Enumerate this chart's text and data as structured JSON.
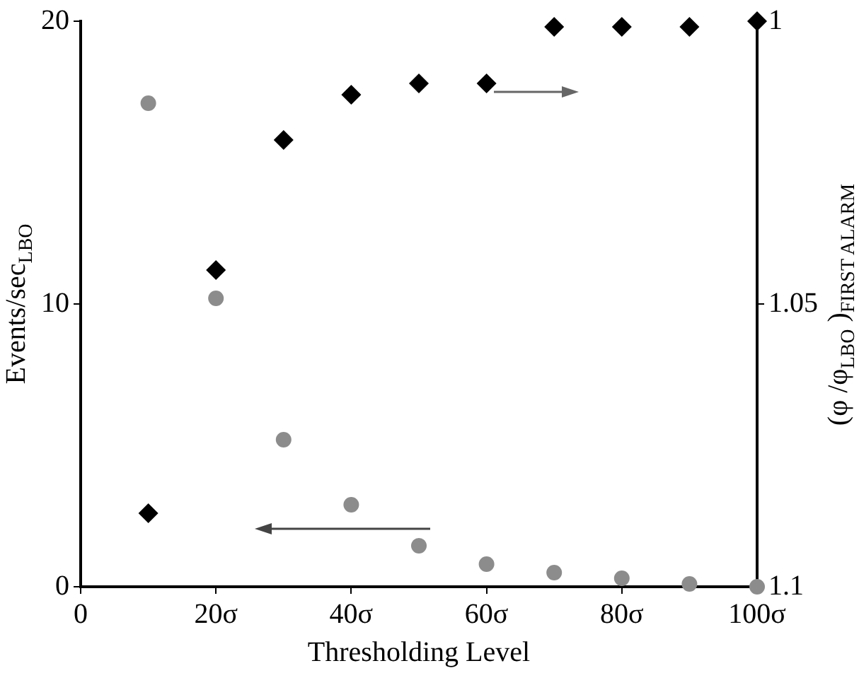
{
  "chart_data": {
    "type": "scatter",
    "xlabel": "Thresholding Level",
    "ylabel": "Events/sec$_{LBO}$",
    "y2label": "(φ /φ$_{LBO}$ )$_{FIRST ALARM}$",
    "x": [
      10,
      20,
      30,
      40,
      50,
      60,
      70,
      80,
      90,
      100
    ],
    "series": [
      {
        "color": "#8c8c8c",
        "marker": "circle",
        "values": [
          17.1,
          10.2,
          5.2,
          2.9,
          1.45,
          0.8,
          0.5,
          0.3,
          0.1,
          0
        ]
      },
      {
        "color": "#000000",
        "marker": "diamond",
        "axis": "y2",
        "values": [
          1.087,
          1.044,
          1.021,
          1.013,
          1.011,
          1.011,
          1.001,
          1.001,
          1.001,
          1.0
        ]
      }
    ],
    "xlim": [
      0,
      100
    ],
    "xticks": [
      0,
      {
        "value": 20,
        "label": "20σ"
      },
      {
        "value": 40,
        "label": "40σ"
      },
      {
        "value": 60,
        "label": "60σ"
      },
      {
        "value": 80,
        "label": "80σ"
      },
      {
        "value": 100,
        "label": "100σ"
      }
    ],
    "ylim": [
      0,
      20
    ],
    "yticks": [
      0,
      10,
      20
    ],
    "y2lim": [
      1.1,
      1
    ],
    "y2ticks": [
      1,
      1.05,
      1.1
    ],
    "grid": false,
    "legend": false
  }
}
